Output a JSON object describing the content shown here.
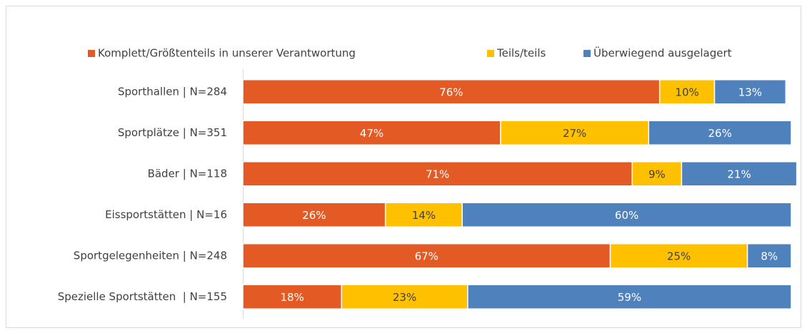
{
  "chart_data": {
    "type": "stacked_barh",
    "categories": [
      "Sporthallen | N=284",
      "Sportplätze | N=351",
      "Bäder | N=118",
      "Eissportstätten | N=16",
      "Sportgelegenheiten | N=248",
      "Spezielle Sportstätten  | N=155"
    ],
    "series": [
      {
        "name": "Komplett/Größtenteils in unserer Verantwortung",
        "color": "#e35a24",
        "label_color": "#ffffff",
        "values": [
          76,
          47,
          71,
          26,
          67,
          18
        ],
        "value_labels": [
          "76%",
          "47%",
          "71%",
          "26%",
          "67%",
          "18%"
        ]
      },
      {
        "name": "Teils/teils",
        "color": "#ffc000",
        "label_color": "#404040",
        "values": [
          10,
          27,
          9,
          14,
          25,
          23
        ],
        "value_labels": [
          "10%",
          "27%",
          "9%",
          "14%",
          "25%",
          "23%"
        ]
      },
      {
        "name": "Überwiegend ausgelagert",
        "color": "#4f81bd",
        "label_color": "#ffffff",
        "values": [
          13,
          26,
          21,
          60,
          8,
          59
        ],
        "value_labels": [
          "13%",
          "26%",
          "21%",
          "60%",
          "8%",
          "59%"
        ]
      }
    ],
    "xlim": [
      0,
      100
    ],
    "legend": "top"
  }
}
